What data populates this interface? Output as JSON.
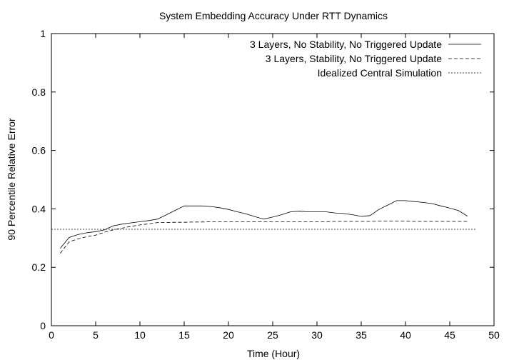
{
  "chart_data": {
    "type": "line",
    "title": "System Embedding Accuracy Under RTT Dynamics",
    "xlabel": "Time (Hour)",
    "ylabel": "90 Percentile Relative Error",
    "xlim": [
      0,
      50
    ],
    "ylim": [
      0,
      1
    ],
    "xticks": [
      "0",
      "5",
      "10",
      "15",
      "20",
      "25",
      "30",
      "35",
      "40",
      "45",
      "50"
    ],
    "yticks": [
      "0",
      "0.2",
      "0.4",
      "0.6",
      "0.8",
      "1"
    ],
    "grid": false,
    "legend_position": "top-right",
    "series": [
      {
        "name": "3 Layers, No Stability, No Triggered Update",
        "style": "solid",
        "x": [
          1,
          2,
          3,
          4,
          5,
          6,
          7,
          8,
          9,
          10,
          11,
          12,
          13,
          14,
          15,
          16,
          17,
          18,
          19,
          20,
          21,
          22,
          23,
          24,
          25,
          26,
          27,
          28,
          29,
          30,
          31,
          32,
          33,
          34,
          35,
          36,
          37,
          38,
          39,
          40,
          41,
          42,
          43,
          44,
          45,
          46,
          47
        ],
        "y": [
          0.265,
          0.302,
          0.312,
          0.318,
          0.322,
          0.328,
          0.342,
          0.348,
          0.352,
          0.356,
          0.36,
          0.365,
          0.38,
          0.395,
          0.41,
          0.41,
          0.41,
          0.408,
          0.404,
          0.398,
          0.39,
          0.383,
          0.373,
          0.365,
          0.372,
          0.38,
          0.39,
          0.392,
          0.39,
          0.39,
          0.39,
          0.386,
          0.384,
          0.38,
          0.374,
          0.377,
          0.398,
          0.413,
          0.428,
          0.428,
          0.425,
          0.422,
          0.418,
          0.41,
          0.403,
          0.394,
          0.375
        ]
      },
      {
        "name": "3 Layers, Stability, No Triggered Update",
        "style": "dashed",
        "x": [
          1,
          2,
          3,
          4,
          5,
          6,
          7,
          8,
          9,
          10,
          11,
          12,
          13,
          14,
          15,
          16,
          17,
          18,
          19,
          20,
          21,
          22,
          23,
          24,
          25,
          26,
          27,
          28,
          29,
          30,
          31,
          32,
          33,
          34,
          35,
          36,
          37,
          38,
          39,
          40,
          41,
          42,
          43,
          44,
          45,
          46,
          47
        ],
        "y": [
          0.248,
          0.287,
          0.297,
          0.305,
          0.31,
          0.32,
          0.328,
          0.334,
          0.34,
          0.345,
          0.349,
          0.353,
          0.353,
          0.354,
          0.354,
          0.355,
          0.355,
          0.356,
          0.356,
          0.356,
          0.356,
          0.356,
          0.356,
          0.356,
          0.356,
          0.356,
          0.356,
          0.356,
          0.356,
          0.356,
          0.356,
          0.357,
          0.357,
          0.357,
          0.357,
          0.357,
          0.358,
          0.358,
          0.358,
          0.358,
          0.357,
          0.357,
          0.357,
          0.357,
          0.357,
          0.357,
          0.357
        ]
      },
      {
        "name": "Idealized Central Simulation",
        "style": "dotted",
        "x": [
          0,
          48
        ],
        "y": [
          0.33,
          0.33
        ]
      }
    ]
  }
}
